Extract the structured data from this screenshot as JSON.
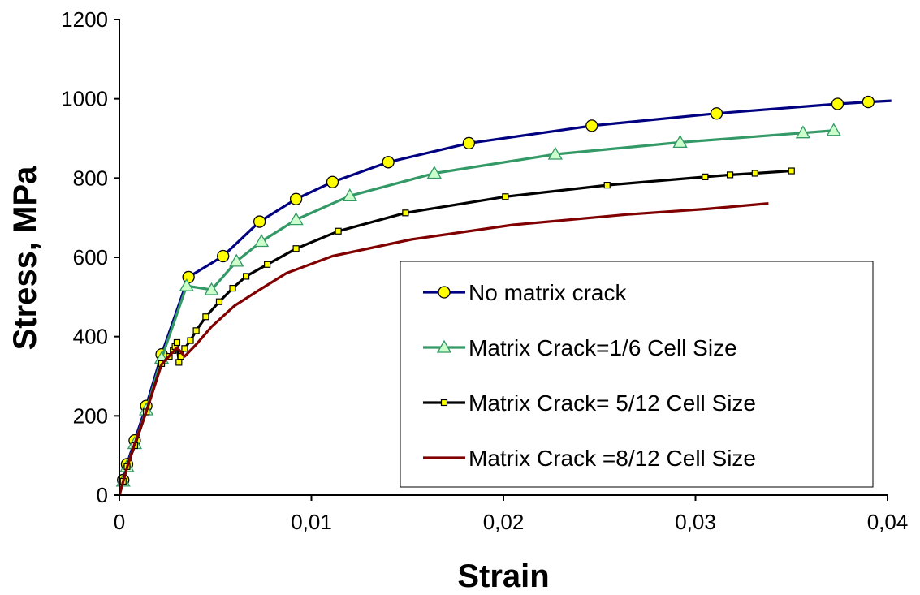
{
  "chart_data": {
    "type": "line",
    "title": "",
    "xlabel": "Strain",
    "ylabel": "Stress, MPa",
    "xlim": [
      0,
      0.04
    ],
    "ylim": [
      0,
      1200
    ],
    "x_ticks": [
      0,
      0.01,
      0.02,
      0.03,
      0.04
    ],
    "x_tick_labels": [
      "0",
      "0,01",
      "0,02",
      "0,03",
      "0,04"
    ],
    "y_ticks": [
      0,
      200,
      400,
      600,
      800,
      1000,
      1200
    ],
    "y_tick_labels": [
      "0",
      "200",
      "400",
      "600",
      "800",
      "1000",
      "1200"
    ],
    "grid": false,
    "legend_position": "bottom-right",
    "series": [
      {
        "name": "No matrix crack",
        "color": "#000080",
        "marker": "circle",
        "marker_fill": "#ffff00",
        "points": [
          [
            0,
            0
          ],
          [
            0.0002,
            38
          ],
          [
            0.0004,
            78
          ],
          [
            0.0008,
            138
          ],
          [
            0.0014,
            225
          ],
          [
            0.0022,
            355
          ],
          [
            0.0036,
            550
          ],
          [
            0.0054,
            603
          ],
          [
            0.0073,
            690
          ],
          [
            0.0092,
            747
          ],
          [
            0.0111,
            790
          ],
          [
            0.014,
            840
          ],
          [
            0.0182,
            888
          ],
          [
            0.0246,
            932
          ],
          [
            0.0311,
            963
          ],
          [
            0.0374,
            987
          ],
          [
            0.039,
            992
          ],
          [
            0.0402,
            995
          ]
        ],
        "markers": [
          [
            0.0002,
            38
          ],
          [
            0.0004,
            78
          ],
          [
            0.0008,
            138
          ],
          [
            0.0014,
            225
          ],
          [
            0.0022,
            355
          ],
          [
            0.0036,
            550
          ],
          [
            0.0054,
            603
          ],
          [
            0.0073,
            690
          ],
          [
            0.0092,
            747
          ],
          [
            0.0111,
            790
          ],
          [
            0.014,
            840
          ],
          [
            0.0182,
            888
          ],
          [
            0.0246,
            932
          ],
          [
            0.0311,
            963
          ],
          [
            0.0374,
            987
          ],
          [
            0.039,
            992
          ]
        ]
      },
      {
        "name": "Matrix Crack=1/6 Cell Size",
        "color": "#339966",
        "marker": "triangle",
        "marker_fill": "#ccffcc",
        "points": [
          [
            0,
            0
          ],
          [
            0.0002,
            35
          ],
          [
            0.0004,
            72
          ],
          [
            0.0008,
            130
          ],
          [
            0.0014,
            215
          ],
          [
            0.0022,
            345
          ],
          [
            0.0035,
            528
          ],
          [
            0.0048,
            518
          ],
          [
            0.0061,
            590
          ],
          [
            0.0074,
            640
          ],
          [
            0.0092,
            695
          ],
          [
            0.012,
            755
          ],
          [
            0.0164,
            812
          ],
          [
            0.0227,
            860
          ],
          [
            0.0292,
            890
          ],
          [
            0.0356,
            914
          ],
          [
            0.0372,
            920
          ]
        ],
        "markers": [
          [
            0.0002,
            35
          ],
          [
            0.0004,
            72
          ],
          [
            0.0008,
            130
          ],
          [
            0.0014,
            215
          ],
          [
            0.0022,
            345
          ],
          [
            0.0035,
            528
          ],
          [
            0.0048,
            518
          ],
          [
            0.0061,
            590
          ],
          [
            0.0074,
            640
          ],
          [
            0.0092,
            695
          ],
          [
            0.012,
            755
          ],
          [
            0.0164,
            812
          ],
          [
            0.0227,
            860
          ],
          [
            0.0292,
            890
          ],
          [
            0.0356,
            914
          ],
          [
            0.0372,
            920
          ]
        ]
      },
      {
        "name": "Matrix Crack= 5/12 Cell Size",
        "color": "#000000",
        "marker": "square",
        "marker_fill": "#ffff00",
        "points": [
          [
            0,
            0
          ],
          [
            0.0002,
            35
          ],
          [
            0.0004,
            72
          ],
          [
            0.0008,
            125
          ],
          [
            0.0014,
            210
          ],
          [
            0.0022,
            332
          ],
          [
            0.0026,
            350
          ],
          [
            0.0028,
            365
          ],
          [
            0.0029,
            375
          ],
          [
            0.003,
            385
          ],
          [
            0.0031,
            335
          ],
          [
            0.0032,
            350
          ],
          [
            0.0034,
            370
          ],
          [
            0.0037,
            390
          ],
          [
            0.004,
            415
          ],
          [
            0.0045,
            450
          ],
          [
            0.0052,
            488
          ],
          [
            0.0059,
            522
          ],
          [
            0.0066,
            552
          ],
          [
            0.0077,
            582
          ],
          [
            0.0092,
            622
          ],
          [
            0.0114,
            666
          ],
          [
            0.0149,
            712
          ],
          [
            0.0201,
            753
          ],
          [
            0.0254,
            782
          ],
          [
            0.0305,
            803
          ],
          [
            0.0318,
            808
          ],
          [
            0.0331,
            812
          ],
          [
            0.035,
            818
          ]
        ],
        "markers": [
          [
            0.0002,
            35
          ],
          [
            0.0004,
            72
          ],
          [
            0.0008,
            125
          ],
          [
            0.0014,
            210
          ],
          [
            0.0022,
            332
          ],
          [
            0.0026,
            350
          ],
          [
            0.0028,
            365
          ],
          [
            0.0029,
            375
          ],
          [
            0.003,
            385
          ],
          [
            0.0031,
            335
          ],
          [
            0.0032,
            350
          ],
          [
            0.0034,
            370
          ],
          [
            0.0037,
            390
          ],
          [
            0.004,
            415
          ],
          [
            0.0045,
            450
          ],
          [
            0.0052,
            488
          ],
          [
            0.0059,
            522
          ],
          [
            0.0066,
            552
          ],
          [
            0.0077,
            582
          ],
          [
            0.0092,
            622
          ],
          [
            0.0114,
            666
          ],
          [
            0.0149,
            712
          ],
          [
            0.0201,
            753
          ],
          [
            0.0254,
            782
          ],
          [
            0.0305,
            803
          ],
          [
            0.0318,
            808
          ],
          [
            0.0331,
            812
          ],
          [
            0.035,
            818
          ]
        ]
      },
      {
        "name": "Matrix Crack =8/12 Cell Size",
        "color": "#800000",
        "marker": "none",
        "marker_fill": "none",
        "points": [
          [
            0,
            0
          ],
          [
            0.0004,
            70
          ],
          [
            0.0008,
            130
          ],
          [
            0.0014,
            210
          ],
          [
            0.0022,
            330
          ],
          [
            0.003,
            372
          ],
          [
            0.0034,
            350
          ],
          [
            0.004,
            380
          ],
          [
            0.0048,
            425
          ],
          [
            0.006,
            478
          ],
          [
            0.0072,
            515
          ],
          [
            0.0087,
            560
          ],
          [
            0.0111,
            603
          ],
          [
            0.0152,
            645
          ],
          [
            0.0205,
            682
          ],
          [
            0.0264,
            708
          ],
          [
            0.0306,
            722
          ],
          [
            0.0338,
            736
          ]
        ],
        "markers": []
      }
    ]
  }
}
